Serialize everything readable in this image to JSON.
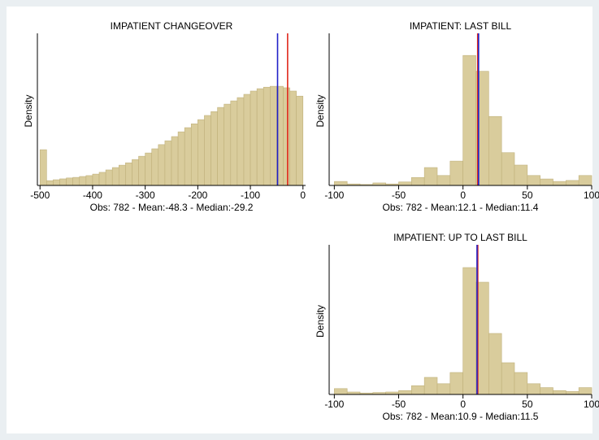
{
  "chart_data": [
    {
      "type": "histogram",
      "title": "IMPATIENT CHANGEOVER",
      "y_label": "Density",
      "x_label": "Obs: 782 - Mean:-48.3 - Median:-29.2",
      "bins": [
        -500,
        -487.5,
        -475,
        -462.5,
        -450,
        -437.5,
        -425,
        -412.5,
        -400,
        -387.5,
        -375,
        -362.5,
        -350,
        -337.5,
        -325,
        -312.5,
        -300,
        -287.5,
        -275,
        -262.5,
        -250,
        -237.5,
        -225,
        -212.5,
        -200,
        -187.5,
        -175,
        -162.5,
        -150,
        -137.5,
        -125,
        -112.5,
        -100,
        -87.5,
        -75,
        -62.5,
        -50,
        -37.5,
        -25,
        -12.5,
        0
      ],
      "values": [
        0.0012,
        0.00016,
        0.00019,
        0.00022,
        0.00025,
        0.00027,
        0.0003,
        0.00033,
        0.00038,
        0.00044,
        0.00052,
        0.0006,
        0.00068,
        0.00076,
        0.00087,
        0.00098,
        0.00109,
        0.00123,
        0.00137,
        0.0015,
        0.00164,
        0.0018,
        0.00194,
        0.00207,
        0.00221,
        0.00235,
        0.00248,
        0.00262,
        0.00273,
        0.00284,
        0.00295,
        0.00306,
        0.00317,
        0.00325,
        0.0033,
        0.00333,
        0.00333,
        0.00328,
        0.00317,
        0.003
      ],
      "color": "#d9cc9c",
      "xlim": [
        -505,
        5
      ],
      "xticks": [
        -500,
        -400,
        -300,
        -200,
        -100,
        0
      ],
      "ylim": [
        0,
        0.005
      ],
      "vlines": [
        {
          "value": -48.3,
          "color": "#2020c8"
        },
        {
          "value": -29.2,
          "color": "#e0281c"
        }
      ]
    },
    {
      "type": "histogram",
      "title": "IMPATIENT: LAST BILL",
      "y_label": "Density",
      "x_label": "Obs: 782 - Mean:12.1 - Median:11.4",
      "bins": [
        -100,
        -90,
        -80,
        -70,
        -60,
        -50,
        -40,
        -30,
        -20,
        -10,
        0,
        10,
        20,
        30,
        40,
        50,
        60,
        70,
        80,
        90,
        100
      ],
      "values": [
        0.0008,
        0.0003,
        0.0002,
        0.0005,
        0.0003,
        0.0007,
        0.0016,
        0.0036,
        0.002,
        0.0049,
        0.0262,
        0.023,
        0.0139,
        0.0066,
        0.0041,
        0.002,
        0.0013,
        0.0008,
        0.001,
        0.002
      ],
      "color": "#d9cc9c",
      "xlim": [
        -104,
        100
      ],
      "xticks": [
        -100,
        -50,
        0,
        50,
        100
      ],
      "ylim": [
        0,
        0.03
      ],
      "vlines": [
        {
          "value": 11.4,
          "color": "#e0281c"
        },
        {
          "value": 12.1,
          "color": "#2020c8"
        }
      ]
    },
    {
      "type": "histogram",
      "title": "IMPATIENT: UP TO LAST BILL",
      "y_label": "Density",
      "x_label": "Obs: 782 - Mean:10.9 - Median:11.5",
      "bins": [
        -100,
        -90,
        -80,
        -70,
        -60,
        -50,
        -40,
        -30,
        -20,
        -10,
        0,
        10,
        20,
        30,
        40,
        50,
        60,
        70,
        80,
        90,
        100
      ],
      "values": [
        0.0012,
        0.0005,
        0.0003,
        0.0004,
        0.0005,
        0.0008,
        0.0018,
        0.0035,
        0.0022,
        0.0045,
        0.026,
        0.023,
        0.0125,
        0.0065,
        0.0045,
        0.0022,
        0.0014,
        0.0008,
        0.0006,
        0.0014
      ],
      "color": "#d9cc9c",
      "xlim": [
        -104,
        100
      ],
      "xticks": [
        -100,
        -50,
        0,
        50,
        100
      ],
      "ylim": [
        0,
        0.03
      ],
      "vlines": [
        {
          "value": 11.5,
          "color": "#e0281c"
        },
        {
          "value": 10.9,
          "color": "#2020c8"
        }
      ]
    }
  ]
}
